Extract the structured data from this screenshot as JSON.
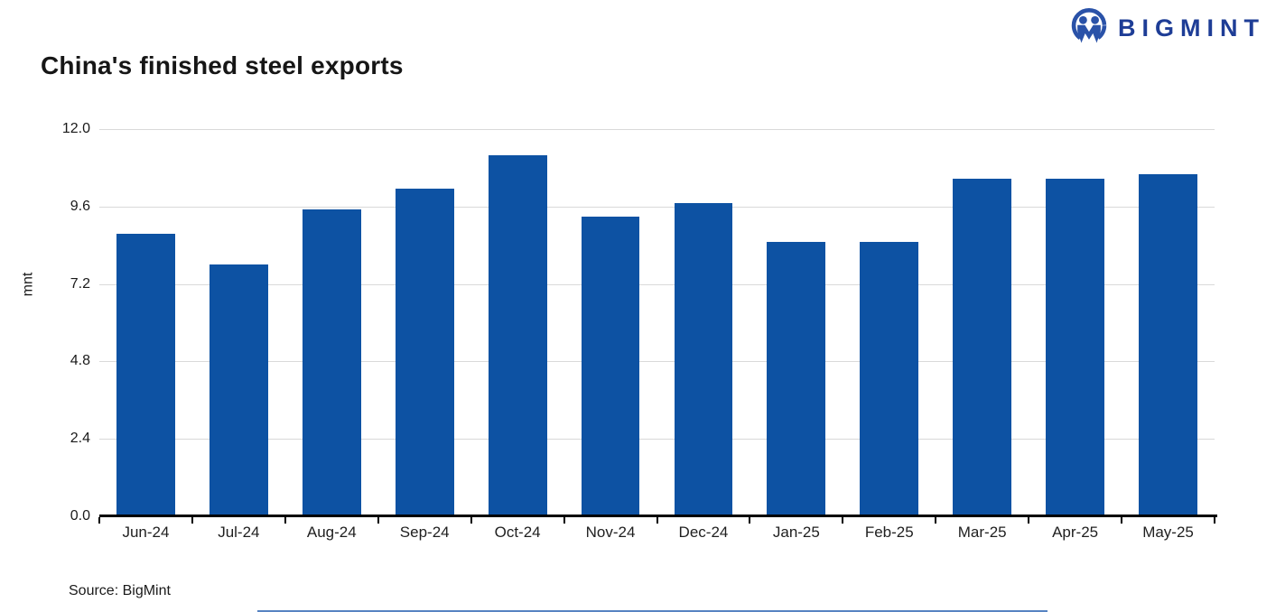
{
  "header": {
    "logo_text": "BIGMINT",
    "logo_icon": "bigmint-people-mark",
    "logo_color": "#1e3d96"
  },
  "title": "China's finished steel exports",
  "chart_data": {
    "type": "bar",
    "title": "China's finished steel exports",
    "categories": [
      "Jun-24",
      "Jul-24",
      "Aug-24",
      "Sep-24",
      "Oct-24",
      "Nov-24",
      "Dec-24",
      "Jan-25",
      "Feb-25",
      "Mar-25",
      "Apr-25",
      "May-25"
    ],
    "values": [
      8.75,
      7.8,
      9.5,
      10.15,
      11.2,
      9.3,
      9.7,
      8.5,
      8.5,
      10.45,
      10.45,
      10.6
    ],
    "xlabel": "",
    "ylabel": "mnt",
    "ylim": [
      0,
      12
    ],
    "ytick_labels": [
      "0.0",
      "2.4",
      "4.8",
      "7.2",
      "9.6",
      "12.0"
    ],
    "grid": "horizontal",
    "legend": "none",
    "bar_color": "#0d52a3",
    "gridline_color": "#d9d9d9",
    "axis_color": "#000000"
  },
  "source": "Source: BigMint"
}
